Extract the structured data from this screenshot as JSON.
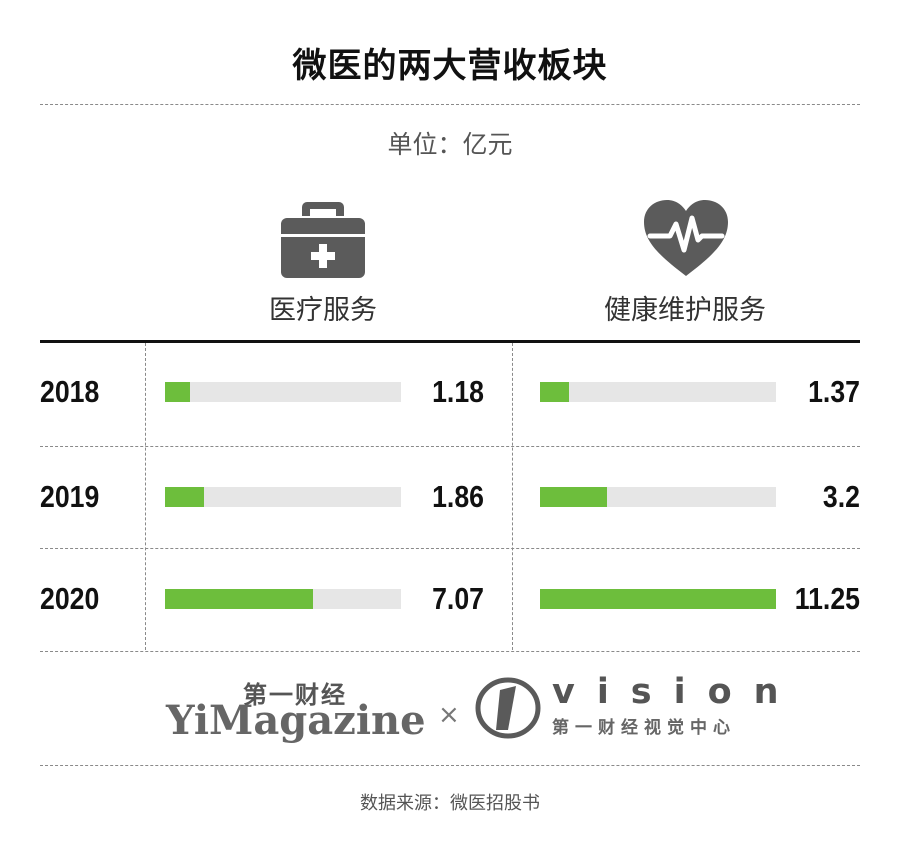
{
  "title": "微医的两大营收板块",
  "unit": "单位：亿元",
  "chart_data": {
    "type": "bar",
    "categories": [
      "2018",
      "2019",
      "2020"
    ],
    "series": [
      {
        "name": "医疗服务",
        "values": [
          1.18,
          1.86,
          7.07
        ],
        "labels": [
          "1.18",
          "1.86",
          "7.07"
        ]
      },
      {
        "name": "健康维护服务",
        "values": [
          1.37,
          3.2,
          11.25
        ],
        "labels": [
          "1.37",
          "3.2",
          "11.25"
        ]
      }
    ],
    "xlim": [
      0,
      11.25
    ],
    "bar_color": "#6dbe3c",
    "track_color": "#e6e6e6"
  },
  "icons": {
    "medical": "medical-kit-icon",
    "health": "heart-pulse-icon"
  },
  "logos": {
    "yimagazine_cn": "第一财经",
    "yimagazine_en": "YiMagazine",
    "separator": "×",
    "vision_en": "vision",
    "vision_cn": "第一财经视觉中心"
  },
  "source": "数据来源：微医招股书"
}
